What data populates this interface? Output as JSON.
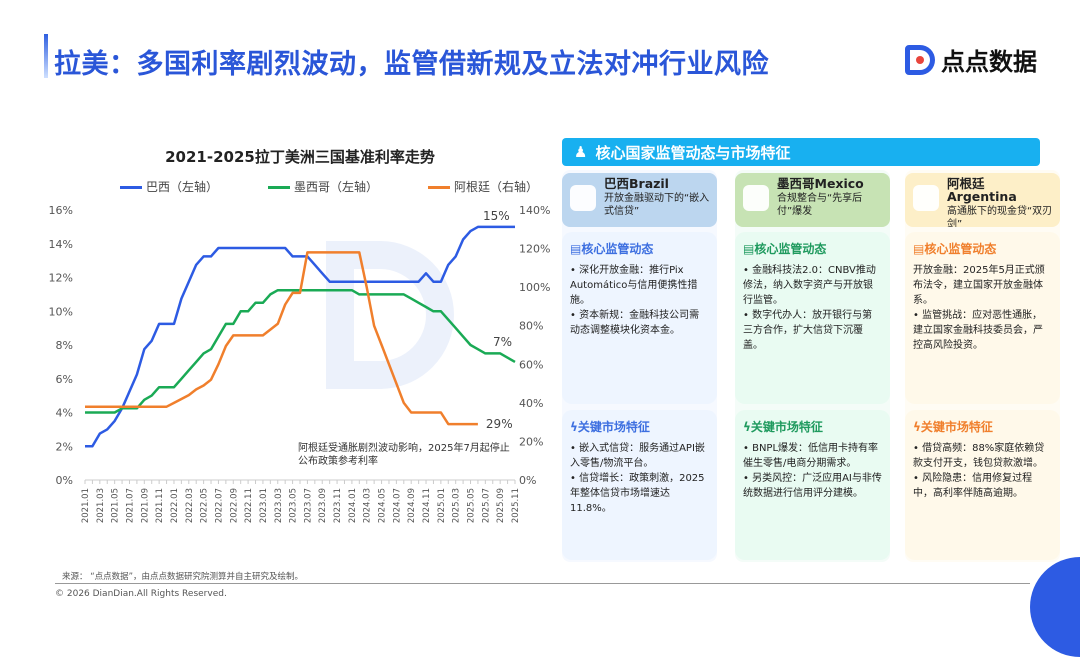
{
  "header": {
    "title": "拉美：多国利率剧烈波动，监管借新规及立法对冲行业风险",
    "logo_text": "点点数据"
  },
  "chart_data": {
    "type": "line",
    "title": "2021-2025拉丁美洲三国基准利率走势",
    "categories": [
      "2021.01",
      "2021.02",
      "2021.03",
      "2021.04",
      "2021.05",
      "2021.06",
      "2021.07",
      "2021.08",
      "2021.09",
      "2021.10",
      "2021.11",
      "2021.12",
      "2022.01",
      "2022.02",
      "2022.03",
      "2022.04",
      "2022.05",
      "2022.06",
      "2022.07",
      "2022.08",
      "2022.09",
      "2022.10",
      "2022.11",
      "2022.12",
      "2023.01",
      "2023.02",
      "2023.03",
      "2023.04",
      "2023.05",
      "2023.06",
      "2023.07",
      "2023.08",
      "2023.09",
      "2023.10",
      "2023.11",
      "2023.12",
      "2024.01",
      "2024.02",
      "2024.03",
      "2024.04",
      "2024.05",
      "2024.06",
      "2024.07",
      "2024.08",
      "2024.09",
      "2024.10",
      "2024.11",
      "2024.12",
      "2025.01",
      "2025.02",
      "2025.03",
      "2025.04",
      "2025.05",
      "2025.06",
      "2025.07",
      "2025.08",
      "2025.09",
      "2025.10",
      "2025.11"
    ],
    "tick_labels": [
      "2021.01",
      "2021.03",
      "2021.05",
      "2021.07",
      "2021.09",
      "2021.11",
      "2022.01",
      "2022.03",
      "2022.05",
      "2022.07",
      "2022.09",
      "2022.11",
      "2023.01",
      "2023.03",
      "2023.05",
      "2023.07",
      "2023.09",
      "2023.11",
      "2024.01",
      "2024.03",
      "2024.05",
      "2024.07",
      "2024.09",
      "2024.11",
      "2025.01",
      "2025.03",
      "2025.05",
      "2025.07",
      "2025.09",
      "2025.11"
    ],
    "y_left": {
      "range": [
        0,
        16
      ],
      "ticks": [
        "0%",
        "2%",
        "4%",
        "6%",
        "8%",
        "10%",
        "12%",
        "14%",
        "16%"
      ]
    },
    "y_right": {
      "range": [
        0,
        140
      ],
      "ticks": [
        "0%",
        "20%",
        "40%",
        "60%",
        "80%",
        "100%",
        "120%",
        "140%"
      ]
    },
    "legend_position": "top",
    "grid": false,
    "series": [
      {
        "name": "巴西（左轴）",
        "axis": "left",
        "color": "#2d5be3",
        "end_label": "15%",
        "values": [
          2,
          2,
          2.75,
          3,
          3.5,
          4.25,
          5.25,
          6.25,
          7.75,
          8.25,
          9.25,
          9.25,
          9.25,
          10.75,
          11.75,
          12.75,
          13.25,
          13.25,
          13.75,
          13.75,
          13.75,
          13.75,
          13.75,
          13.75,
          13.75,
          13.75,
          13.75,
          13.75,
          13.25,
          13.25,
          13.25,
          12.75,
          12.25,
          11.75,
          11.75,
          11.75,
          11.75,
          11.75,
          11.75,
          11.75,
          11.75,
          11.75,
          11.75,
          11.75,
          11.75,
          11.75,
          12.25,
          11.75,
          11.75,
          12.75,
          13.25,
          14.25,
          14.75,
          15,
          15,
          15,
          15,
          15,
          15
        ]
      },
      {
        "name": "墨西哥（左轴）",
        "axis": "left",
        "color": "#1aaa55",
        "end_label": "7%",
        "values": [
          4,
          4,
          4,
          4,
          4,
          4.25,
          4.25,
          4.25,
          4.75,
          5,
          5.5,
          5.5,
          5.5,
          6,
          6.5,
          7,
          7.5,
          7.75,
          8.5,
          9.25,
          9.25,
          10,
          10,
          10.5,
          10.5,
          11,
          11.25,
          11.25,
          11.25,
          11.25,
          11.25,
          11.25,
          11.25,
          11.25,
          11.25,
          11.25,
          11.25,
          11,
          11,
          11,
          11,
          11,
          11,
          11,
          10.75,
          10.5,
          10.25,
          10,
          10,
          9.5,
          9,
          8.5,
          8,
          7.75,
          7.5,
          7.5,
          7.5,
          7.25,
          7
        ]
      },
      {
        "name": "阿根廷（右轴）",
        "axis": "right",
        "color": "#f07f2c",
        "end_label": "29%",
        "values": [
          38,
          38,
          38,
          38,
          38,
          38,
          38,
          38,
          38,
          38,
          38,
          38,
          40,
          42,
          44,
          47,
          49,
          52,
          60,
          69.5,
          75,
          75,
          75,
          75,
          75,
          78,
          81,
          91,
          97,
          97,
          118,
          118,
          118,
          118,
          118,
          118,
          118,
          118,
          100,
          80,
          70,
          60,
          50,
          40,
          35,
          35,
          35,
          35,
          35,
          29,
          29,
          29,
          29,
          29,
          null,
          null,
          null,
          null,
          null
        ]
      }
    ],
    "annotation": "阿根廷受通胀剧烈波动影响，2025年7月起停止公布政策参考利率"
  },
  "panel": {
    "title": "核心国家监管动态与市场特征",
    "countries": [
      {
        "name": "巴西Brazil",
        "subtitle": "开放金融驱动下的“嵌入式信贷”",
        "core_title": "核心监管动态",
        "core": [
          "• 深化开放金融：推行Pix Automático与信用便携性措施。",
          "• 资本新规：金融科技公司需动态调整模块化资本金。"
        ],
        "market_title": "关键市场特征",
        "market": [
          "• 嵌入式信贷：服务通过API嵌入零售/物流平台。",
          "• 信贷增长：政策刺激，2025年整体信贷市场增速达11.8%。"
        ]
      },
      {
        "name": "墨西哥Mexico",
        "subtitle": "合规整合与“先享后付”爆发",
        "core_title": "核心监管动态",
        "core": [
          "• 金融科技法2.0：CNBV推动修法，纳入数字资产与开放银行监管。",
          "• 数字代办人：放开银行与第三方合作，扩大信贷下沉覆盖。"
        ],
        "market_title": "关键市场特征",
        "market": [
          "• BNPL爆发：低信用卡持有率催生零售/电商分期需求。",
          "• 另类风控：广泛应用AI与非传统数据进行信用评分建模。"
        ]
      },
      {
        "name": "阿根廷Argentina",
        "subtitle": "高通胀下的现金贷“双刃剑”",
        "core_title": "核心监管动态",
        "core": [
          "开放金融：2025年5月正式颁布法令，建立国家开放金融体系。",
          "• 监管挑战：应对恶性通胀，建立国家金融科技委员会，严控高风险投资。"
        ],
        "market_title": "关键市场特征",
        "market": [
          "• 借贷高频：88%家庭依赖贷款支付开支，钱包贷款激增。",
          "• 风险隐患：信用修复过程中，高利率伴随高逾期。"
        ]
      }
    ]
  },
  "footer": {
    "source": "来源：  “点点数据”，由点点数据研究院测算并自主研究及绘制。",
    "copyright": "© 2026 DianDian.All Rights Reserved."
  }
}
